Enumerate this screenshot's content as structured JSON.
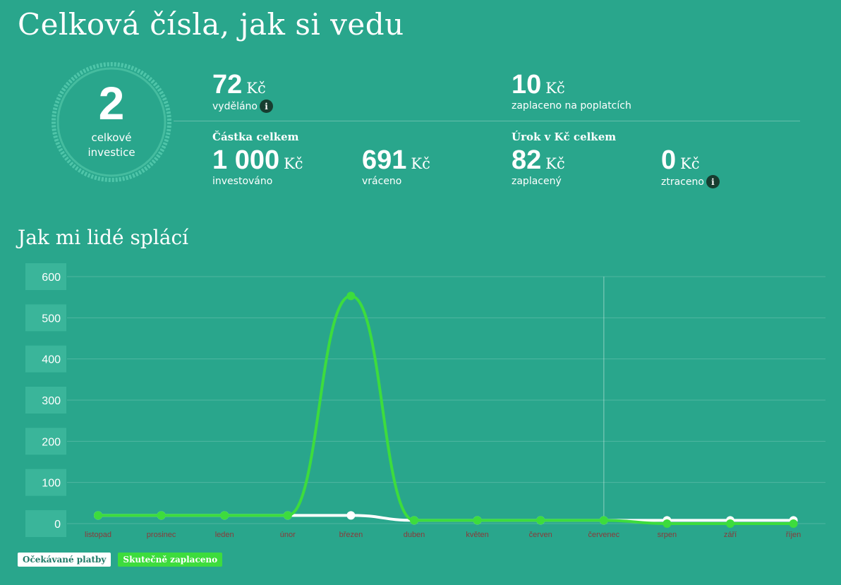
{
  "header": {
    "title": "Celková čísla, jak si vedu"
  },
  "summary": {
    "investments_count": "2",
    "investments_label_line1": "celkové",
    "investments_label_line2": "investice",
    "earned": {
      "value": "72",
      "unit": "Kč",
      "label": "vyděláno"
    },
    "fees": {
      "value": "10",
      "unit": "Kč",
      "label": "zaplaceno na poplatcích"
    },
    "amount_group": "Částka celkem",
    "invested": {
      "value": "1 000",
      "unit": "Kč",
      "label": "investováno"
    },
    "returned": {
      "value": "691",
      "unit": "Kč",
      "label": "vráceno"
    },
    "interest_group": "Úrok v Kč celkem",
    "interest_paid": {
      "value": "82",
      "unit": "Kč",
      "label": "zaplacený"
    },
    "lost": {
      "value": "0",
      "unit": "Kč",
      "label": "ztraceno"
    },
    "info_glyph": "i"
  },
  "section": {
    "title": "Jak mi lidé splácí"
  },
  "legend": {
    "expected": "Očekávané platby",
    "actual": "Skutečně zaplaceno"
  },
  "colors": {
    "background": "#29a68c",
    "expected": "#ffffff",
    "actual": "#3ddc3d",
    "tick_label": "#8a3a3a"
  },
  "chart_data": {
    "type": "line",
    "categories": [
      "listopad",
      "prosinec",
      "leden",
      "únor",
      "březen",
      "duben",
      "květen",
      "červen",
      "červenec",
      "srpen",
      "září",
      "říjen"
    ],
    "series": [
      {
        "name": "Očekávané platby",
        "values": [
          20,
          20,
          20,
          20,
          20,
          8,
          8,
          8,
          8,
          8,
          8,
          8
        ]
      },
      {
        "name": "Skutečně zaplaceno",
        "values": [
          20,
          20,
          20,
          20,
          553,
          8,
          8,
          8,
          8,
          0,
          0,
          0
        ]
      }
    ],
    "ylim": [
      0,
      600
    ],
    "yticks": [
      0,
      100,
      200,
      300,
      400,
      500,
      600
    ],
    "current_month_marker": "červenec",
    "grid": true,
    "legend_position": "bottom-left"
  }
}
